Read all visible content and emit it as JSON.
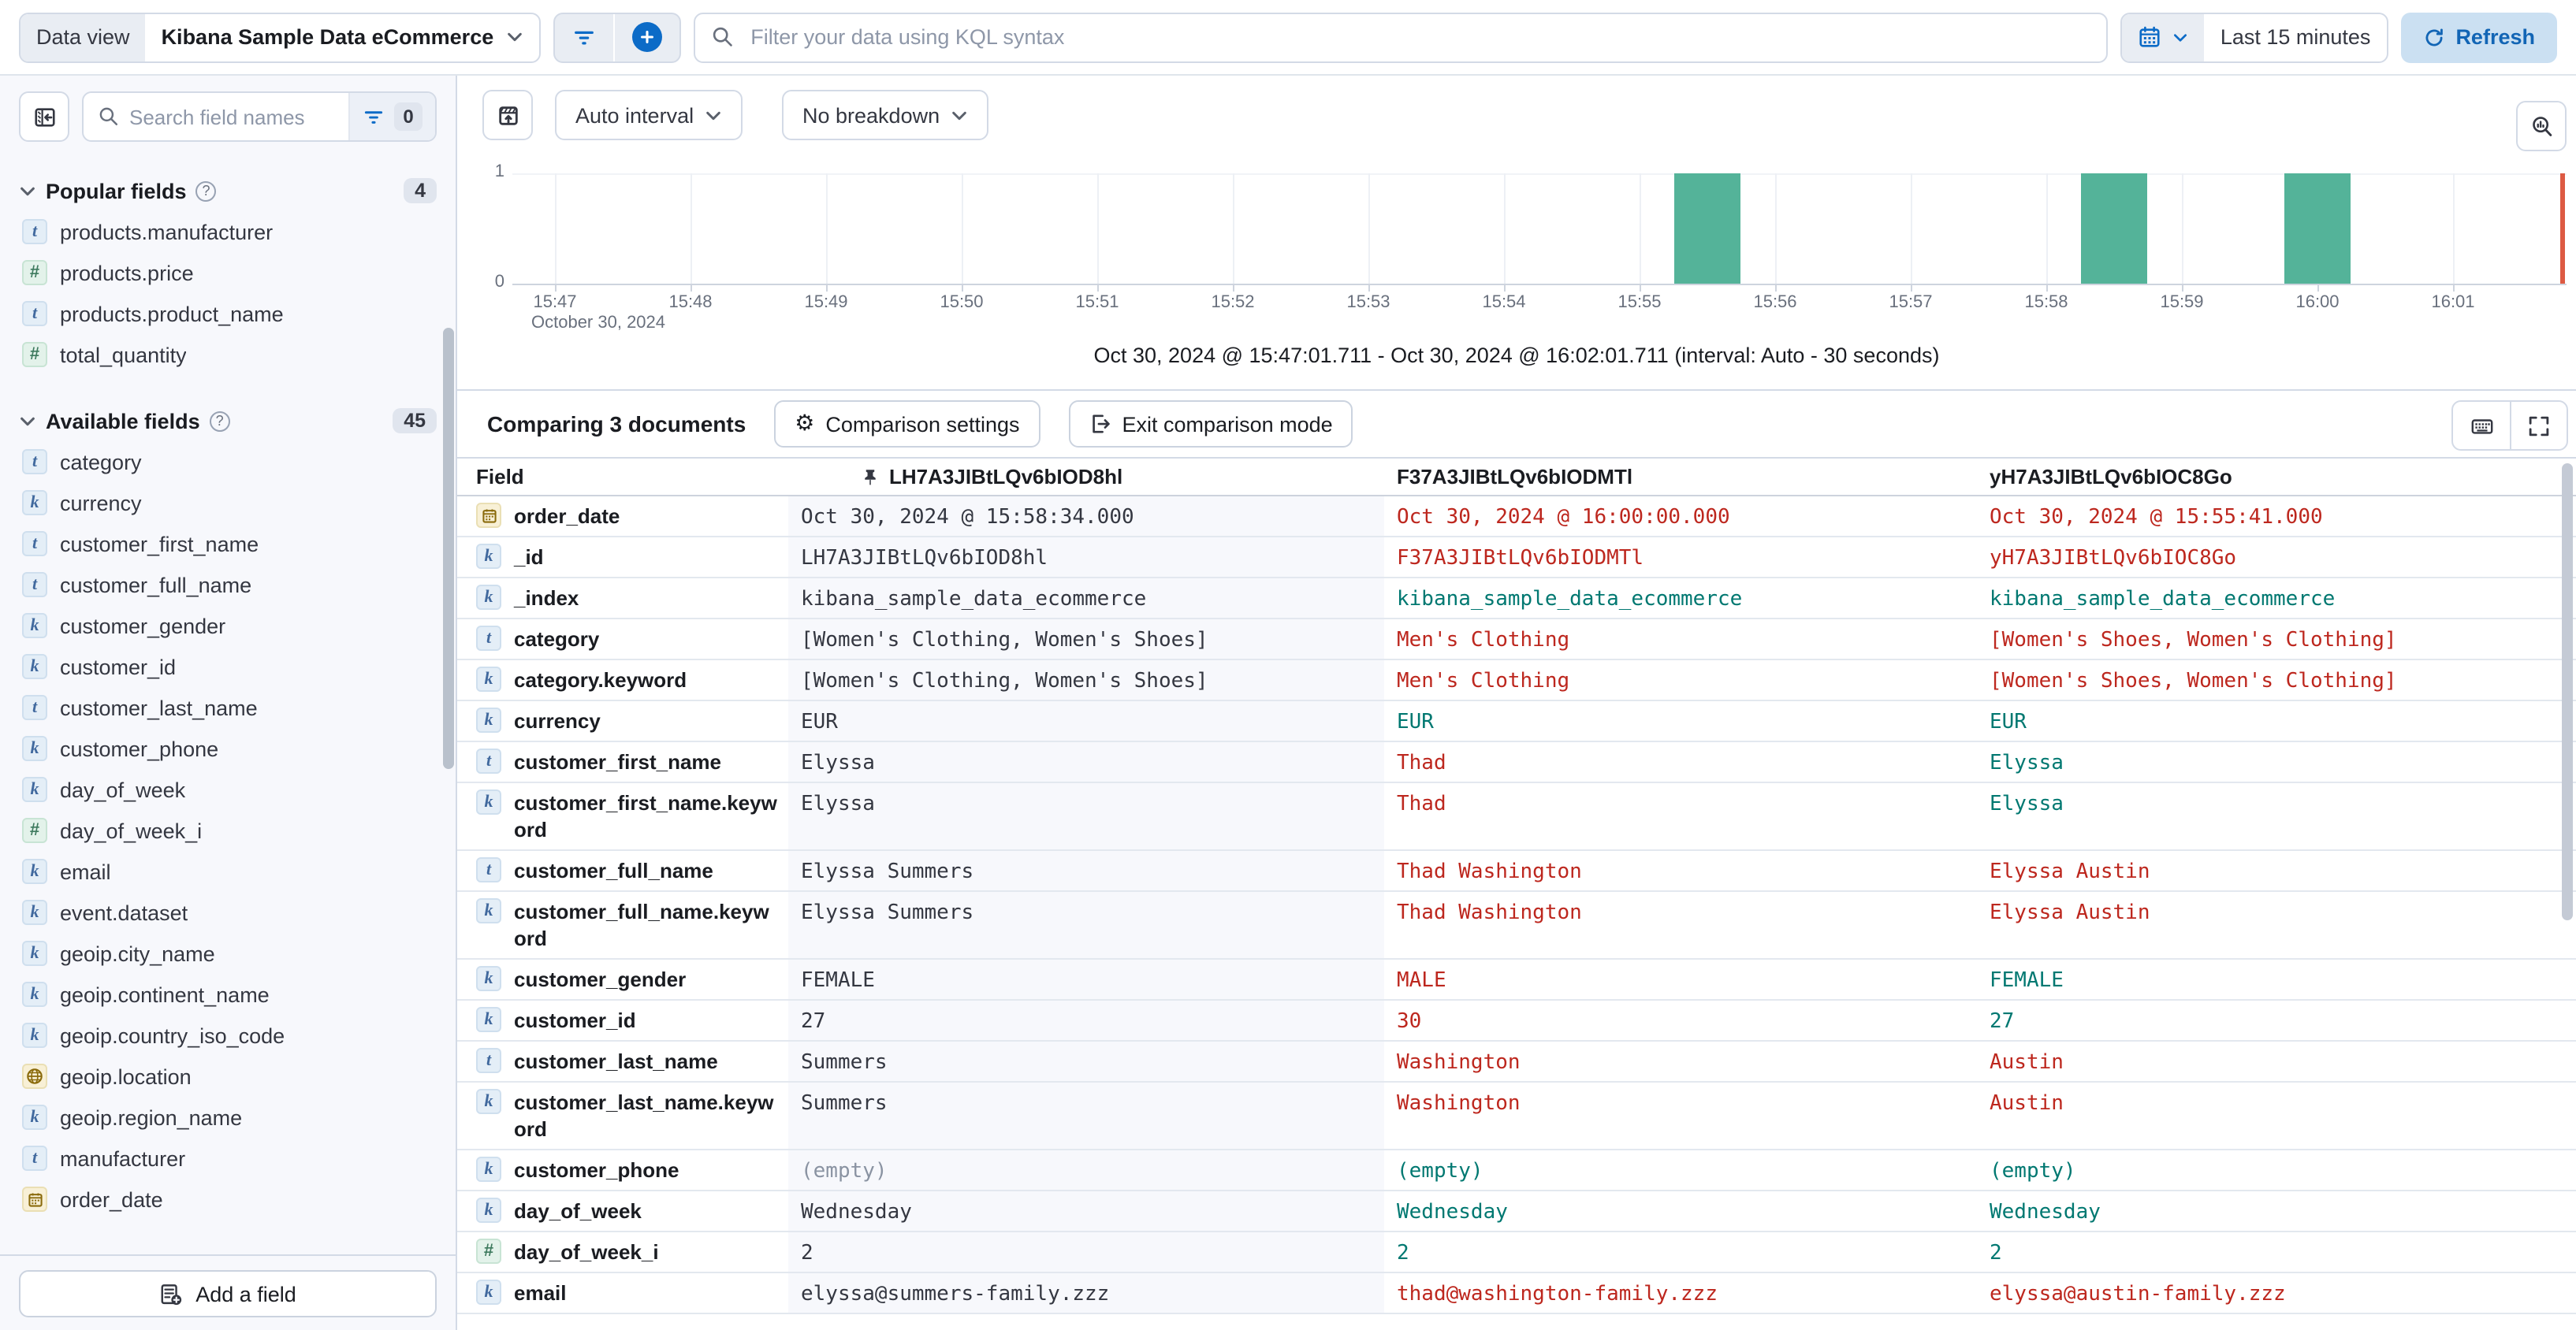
{
  "topbar": {
    "data_view_label": "Data view",
    "data_view_value": "Kibana Sample Data eCommerce",
    "search_placeholder": "Filter your data using KQL syntax",
    "time_range": "Last 15 minutes",
    "refresh_label": "Refresh"
  },
  "sidebar": {
    "search_placeholder": "Search field names",
    "filter_count": "0",
    "popular": {
      "title": "Popular fields",
      "count": "4",
      "items": [
        {
          "label": "products.manufacturer",
          "type": "text"
        },
        {
          "label": "products.price",
          "type": "number"
        },
        {
          "label": "products.product_name",
          "type": "text"
        },
        {
          "label": "total_quantity",
          "type": "number"
        }
      ]
    },
    "available": {
      "title": "Available fields",
      "count": "45",
      "items": [
        {
          "label": "category",
          "type": "text"
        },
        {
          "label": "currency",
          "type": "keyword"
        },
        {
          "label": "customer_first_name",
          "type": "text"
        },
        {
          "label": "customer_full_name",
          "type": "text"
        },
        {
          "label": "customer_gender",
          "type": "keyword"
        },
        {
          "label": "customer_id",
          "type": "keyword"
        },
        {
          "label": "customer_last_name",
          "type": "text"
        },
        {
          "label": "customer_phone",
          "type": "keyword"
        },
        {
          "label": "day_of_week",
          "type": "keyword"
        },
        {
          "label": "day_of_week_i",
          "type": "number"
        },
        {
          "label": "email",
          "type": "keyword"
        },
        {
          "label": "event.dataset",
          "type": "keyword"
        },
        {
          "label": "geoip.city_name",
          "type": "keyword"
        },
        {
          "label": "geoip.continent_name",
          "type": "keyword"
        },
        {
          "label": "geoip.country_iso_code",
          "type": "keyword"
        },
        {
          "label": "geoip.location",
          "type": "geo"
        },
        {
          "label": "geoip.region_name",
          "type": "keyword"
        },
        {
          "label": "manufacturer",
          "type": "text"
        },
        {
          "label": "order_date",
          "type": "date"
        }
      ]
    },
    "add_field_label": "Add a field"
  },
  "chart": {
    "interval_label": "Auto interval",
    "breakdown_label": "No breakdown",
    "y_ticks": [
      "1",
      "0"
    ],
    "x_ticks": [
      "15:47",
      "15:48",
      "15:49",
      "15:50",
      "15:51",
      "15:52",
      "15:53",
      "15:54",
      "15:55",
      "15:56",
      "15:57",
      "15:58",
      "15:59",
      "16:00",
      "16:01"
    ],
    "x_subtitle": "October 30, 2024",
    "range_label": "Oct 30, 2024 @ 15:47:01.711 - Oct 30, 2024 @ 16:02:01.711 (interval: Auto - 30 seconds)",
    "bar_color": "#54B399",
    "now_line_color": "#DD5A43"
  },
  "chart_data": {
    "type": "bar",
    "title": "Discover document count histogram",
    "x": [
      "15:55:30",
      "15:58:30",
      "16:00:00"
    ],
    "values": [
      1,
      1,
      1
    ],
    "x_minutes_from_axis_start": [
      8.5,
      11.5,
      13.0
    ],
    "xlabel": "October 30, 2024",
    "ylabel": "",
    "ylim": [
      0,
      1
    ],
    "x_domain": [
      "Oct 30, 2024 @ 15:47:01.711",
      "Oct 30, 2024 @ 16:02:01.711"
    ],
    "interval": "Auto - 30 seconds",
    "grid": true,
    "legend": false
  },
  "comparison": {
    "title": "Comparing 3 documents",
    "settings_label": "Comparison settings",
    "exit_label": "Exit comparison mode",
    "columns": [
      "Field",
      "LH7A3JIBtLQv6bIOD8hl",
      "F37A3JIBtLQv6bIODMTl",
      "yH7A3JIBtLQv6bIOC8Go"
    ],
    "pinned_column": "LH7A3JIBtLQv6bIOD8hl",
    "diff_color": "#BD271E",
    "match_color": "#007871",
    "rows": [
      {
        "field": "order_date",
        "type": "date",
        "cells": [
          {
            "t": "Oct 30, 2024 @ 15:58:34.000",
            "tone": "base"
          },
          {
            "t": "Oct 30, 2024 @ 16:00:00.000",
            "tone": "diff"
          },
          {
            "t": "Oct 30, 2024 @ 15:55:41.000",
            "tone": "diff"
          }
        ]
      },
      {
        "field": "_id",
        "type": "keyword",
        "cells": [
          {
            "t": "LH7A3JIBtLQv6bIOD8hl",
            "tone": "base"
          },
          {
            "t": "F37A3JIBtLQv6bIODMTl",
            "tone": "diff"
          },
          {
            "t": "yH7A3JIBtLQv6bIOC8Go",
            "tone": "diff"
          }
        ]
      },
      {
        "field": "_index",
        "type": "keyword",
        "cells": [
          {
            "t": "kibana_sample_data_ecommerce",
            "tone": "base"
          },
          {
            "t": "kibana_sample_data_ecommerce",
            "tone": "same"
          },
          {
            "t": "kibana_sample_data_ecommerce",
            "tone": "same"
          }
        ]
      },
      {
        "field": "category",
        "type": "text",
        "cells": [
          {
            "t": "[Women's Clothing, Women's Shoes]",
            "tone": "base"
          },
          {
            "t": "Men's Clothing",
            "tone": "diff"
          },
          {
            "t": "[Women's Shoes, Women's Clothing]",
            "tone": "diff"
          }
        ]
      },
      {
        "field": "category.keyword",
        "type": "keyword",
        "cells": [
          {
            "t": "[Women's Clothing, Women's Shoes]",
            "tone": "base"
          },
          {
            "t": "Men's Clothing",
            "tone": "diff"
          },
          {
            "t": "[Women's Shoes, Women's Clothing]",
            "tone": "diff"
          }
        ]
      },
      {
        "field": "currency",
        "type": "keyword",
        "cells": [
          {
            "t": "EUR",
            "tone": "base"
          },
          {
            "t": "EUR",
            "tone": "same"
          },
          {
            "t": "EUR",
            "tone": "same"
          }
        ]
      },
      {
        "field": "customer_first_name",
        "type": "text",
        "cells": [
          {
            "t": "Elyssa",
            "tone": "base"
          },
          {
            "t": "Thad",
            "tone": "diff"
          },
          {
            "t": "Elyssa",
            "tone": "same"
          }
        ]
      },
      {
        "field": "customer_first_name.keyword",
        "type": "keyword",
        "cells": [
          {
            "t": "Elyssa",
            "tone": "base"
          },
          {
            "t": "Thad",
            "tone": "diff"
          },
          {
            "t": "Elyssa",
            "tone": "same"
          }
        ]
      },
      {
        "field": "customer_full_name",
        "type": "text",
        "cells": [
          {
            "t": "Elyssa Summers",
            "tone": "base"
          },
          {
            "t": "Thad Washington",
            "tone": "diff"
          },
          {
            "t": "Elyssa Austin",
            "tone": "diff"
          }
        ]
      },
      {
        "field": "customer_full_name.keyword",
        "type": "keyword",
        "cells": [
          {
            "t": "Elyssa Summers",
            "tone": "base"
          },
          {
            "t": "Thad Washington",
            "tone": "diff"
          },
          {
            "t": "Elyssa Austin",
            "tone": "diff"
          }
        ]
      },
      {
        "field": "customer_gender",
        "type": "keyword",
        "cells": [
          {
            "t": "FEMALE",
            "tone": "base"
          },
          {
            "t": "MALE",
            "tone": "diff"
          },
          {
            "t": "FEMALE",
            "tone": "same"
          }
        ]
      },
      {
        "field": "customer_id",
        "type": "keyword",
        "cells": [
          {
            "t": "27",
            "tone": "base"
          },
          {
            "t": "30",
            "tone": "diff"
          },
          {
            "t": "27",
            "tone": "same"
          }
        ]
      },
      {
        "field": "customer_last_name",
        "type": "text",
        "cells": [
          {
            "t": "Summers",
            "tone": "base"
          },
          {
            "t": "Washington",
            "tone": "diff"
          },
          {
            "t": "Austin",
            "tone": "diff"
          }
        ]
      },
      {
        "field": "customer_last_name.keyword",
        "type": "keyword",
        "cells": [
          {
            "t": "Summers",
            "tone": "base"
          },
          {
            "t": "Washington",
            "tone": "diff"
          },
          {
            "t": "Austin",
            "tone": "diff"
          }
        ]
      },
      {
        "field": "customer_phone",
        "type": "keyword",
        "cells": [
          {
            "t": "(empty)",
            "tone": "muted"
          },
          {
            "t": "(empty)",
            "tone": "same"
          },
          {
            "t": "(empty)",
            "tone": "same"
          }
        ]
      },
      {
        "field": "day_of_week",
        "type": "keyword",
        "cells": [
          {
            "t": "Wednesday",
            "tone": "base"
          },
          {
            "t": "Wednesday",
            "tone": "same"
          },
          {
            "t": "Wednesday",
            "tone": "same"
          }
        ]
      },
      {
        "field": "day_of_week_i",
        "type": "number",
        "cells": [
          {
            "t": "2",
            "tone": "base"
          },
          {
            "t": "2",
            "tone": "same"
          },
          {
            "t": "2",
            "tone": "same"
          }
        ]
      },
      {
        "field": "email",
        "type": "keyword",
        "cells": [
          {
            "t": "elyssa@summers-family.zzz",
            "tone": "base"
          },
          {
            "t": "thad@washington-family.zzz",
            "tone": "diff"
          },
          {
            "t": "elyssa@austin-family.zzz",
            "tone": "diff"
          }
        ]
      }
    ]
  }
}
